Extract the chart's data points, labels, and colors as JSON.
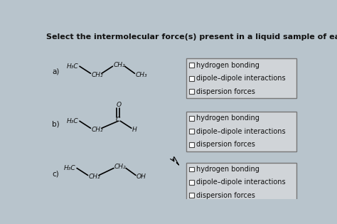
{
  "title": "Select the intermolecular force(s) present in a liquid sample of each compound.",
  "background_color": "#b8c4cc",
  "box_facecolor": "#d0d4d8",
  "box_edge_color": "#777777",
  "text_color": "#111111",
  "title_fontsize": 8.0,
  "label_fontsize": 7.5,
  "mol_fontsize": 6.5,
  "options_fontsize": 7.0,
  "sections": [
    {
      "label": "a)",
      "options": [
        "hydrogen bonding",
        "dipole–dipole interactions",
        "dispersion forces"
      ]
    },
    {
      "label": "b)",
      "options": [
        "hydrogen bonding",
        "dipole–dipole interactions",
        "dispersion forces"
      ]
    },
    {
      "label": "c)",
      "options": [
        "hydrogen bonding",
        "dipole–dipole interactions",
        "dispersion forces"
      ]
    }
  ]
}
